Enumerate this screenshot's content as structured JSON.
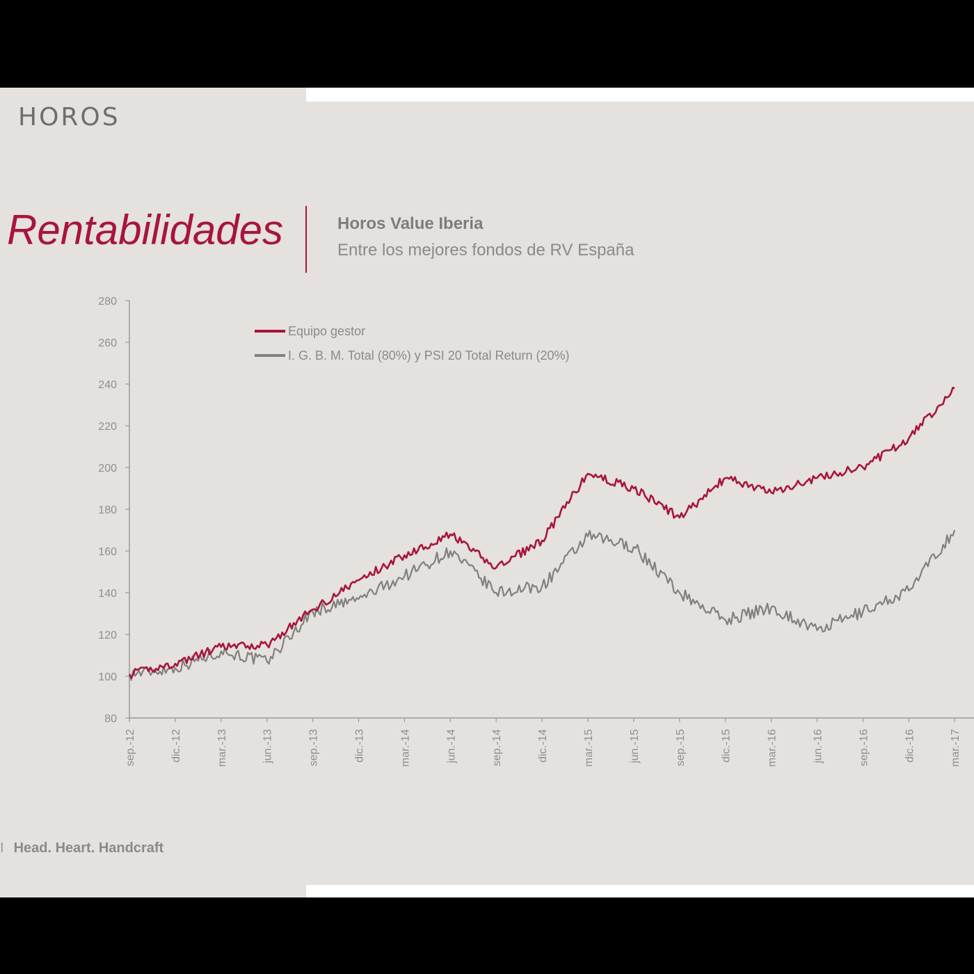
{
  "brand": {
    "logo_text": "HOROS",
    "tagline": "Head. Heart. Handcraft",
    "tagline_mark": "I"
  },
  "slide": {
    "title": "Rentabilidades",
    "subtitle": "Horos Value Iberia",
    "subtitle2": "Entre los mejores fondos de RV España"
  },
  "colors": {
    "accent": "#a8153a",
    "benchmark": "#808080",
    "background": "#e4e1de"
  },
  "chart_data": {
    "type": "line",
    "title": "",
    "xlabel": "",
    "ylabel": "",
    "ylim": [
      80,
      280
    ],
    "yticks": [
      80,
      100,
      120,
      140,
      160,
      180,
      200,
      220,
      240,
      260,
      280
    ],
    "x": [
      "sep.-12",
      "dic.-12",
      "mar.-13",
      "jun.-13",
      "sep.-13",
      "dic.-13",
      "mar.-14",
      "jun.-14",
      "sep.-14",
      "dic.-14",
      "mar.-15",
      "jun.-15",
      "sep.-15",
      "dic.-15",
      "mar.-16",
      "jun.-16",
      "sep.-16",
      "dic.-16",
      "mar.-17"
    ],
    "grid": false,
    "legend_position": "top-left",
    "series": [
      {
        "name": "Equipo gestor",
        "color": "#a8153a",
        "values": [
          101,
          106,
          114,
          115,
          132,
          146,
          158,
          168,
          152,
          165,
          197,
          190,
          176,
          195,
          188,
          195,
          200,
          214,
          238
        ]
      },
      {
        "name": "I. G. B. M. Total (80%) y PSI 20 Total Return (20%)",
        "color": "#808080",
        "values": [
          101,
          104,
          112,
          107,
          131,
          137,
          148,
          160,
          140,
          143,
          167,
          162,
          140,
          127,
          133,
          122,
          131,
          141,
          170
        ]
      }
    ]
  }
}
